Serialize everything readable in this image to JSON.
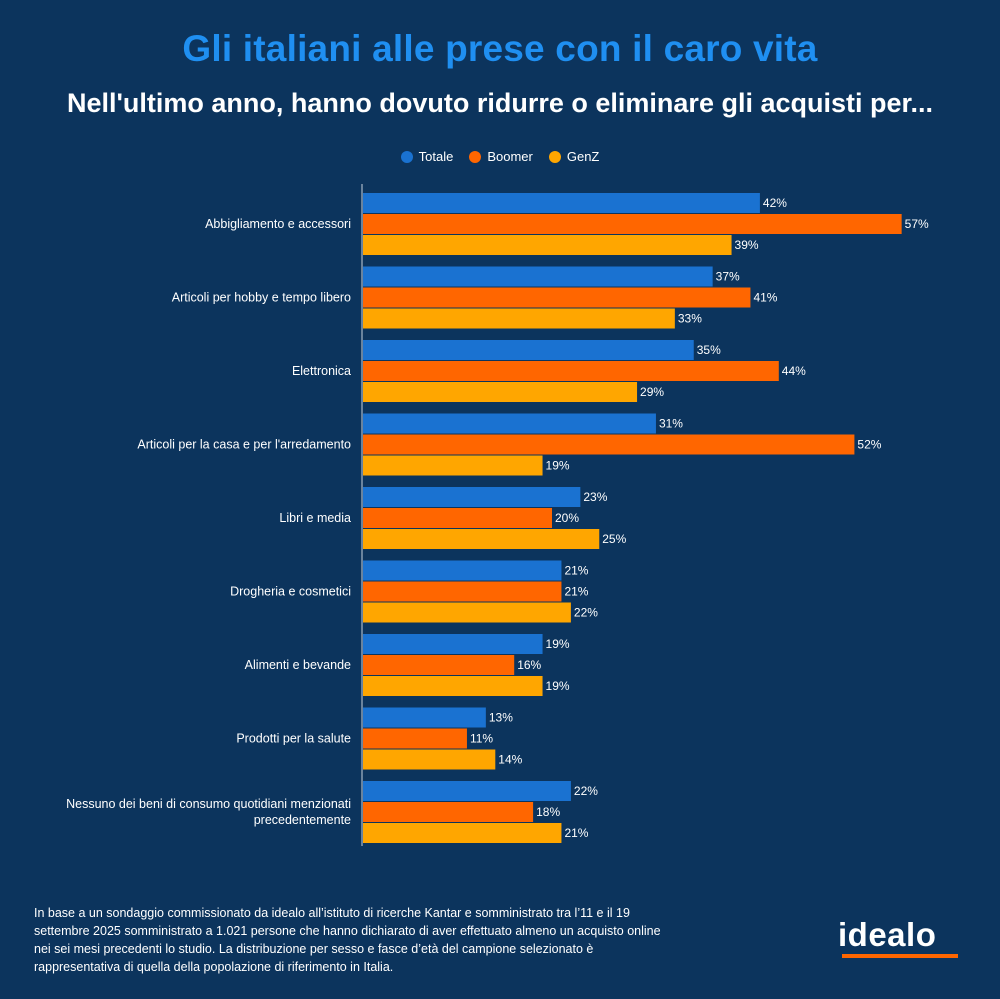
{
  "title": "Gli italiani alle prese con il caro vita",
  "subtitle": "Nell'ultimo anno, hanno dovuto ridurre o eliminare gli acquisti per...",
  "legend": [
    {
      "name": "Totale",
      "color": "#1a72d1"
    },
    {
      "name": "Boomer",
      "color": "#ff6600"
    },
    {
      "name": "GenZ",
      "color": "#ffa600"
    }
  ],
  "footnote": "In base a un sondaggio commissionato da idealo all’istituto di ricerche Kantar e somministrato tra l’11 e il 19 settembre 2025 somministrato a 1.021 persone che hanno dichiarato di aver effettuato almeno un acquisto online nei sei mesi precedenti lo studio. La distribuzione per sesso e fasce d’età del campione selezionato è rappresentativa di quella della popolazione di riferimento in Italia.",
  "logo": "idealo",
  "chart_data": {
    "type": "bar",
    "orientation": "horizontal",
    "categories": [
      "Abbigliamento e accessori",
      "Articoli per hobby e tempo libero",
      "Elettronica",
      "Articoli per la casa e per l'arredamento",
      "Libri e media",
      "Drogheria e cosmetici",
      "Alimenti e bevande",
      "Prodotti per la salute",
      "Nessuno dei beni di consumo quotidiani menzionati precedentemente"
    ],
    "series": [
      {
        "name": "Totale",
        "color": "#1a72d1",
        "values": [
          42,
          37,
          35,
          31,
          23,
          21,
          19,
          13,
          22
        ]
      },
      {
        "name": "Boomer",
        "color": "#ff6600",
        "values": [
          57,
          41,
          44,
          52,
          20,
          21,
          16,
          11,
          18
        ]
      },
      {
        "name": "GenZ",
        "color": "#ffa600",
        "values": [
          39,
          33,
          29,
          19,
          25,
          22,
          19,
          14,
          21
        ]
      }
    ],
    "value_suffix": "%",
    "xlim": [
      0,
      60
    ],
    "legend_position": "top-center",
    "grid": false
  }
}
